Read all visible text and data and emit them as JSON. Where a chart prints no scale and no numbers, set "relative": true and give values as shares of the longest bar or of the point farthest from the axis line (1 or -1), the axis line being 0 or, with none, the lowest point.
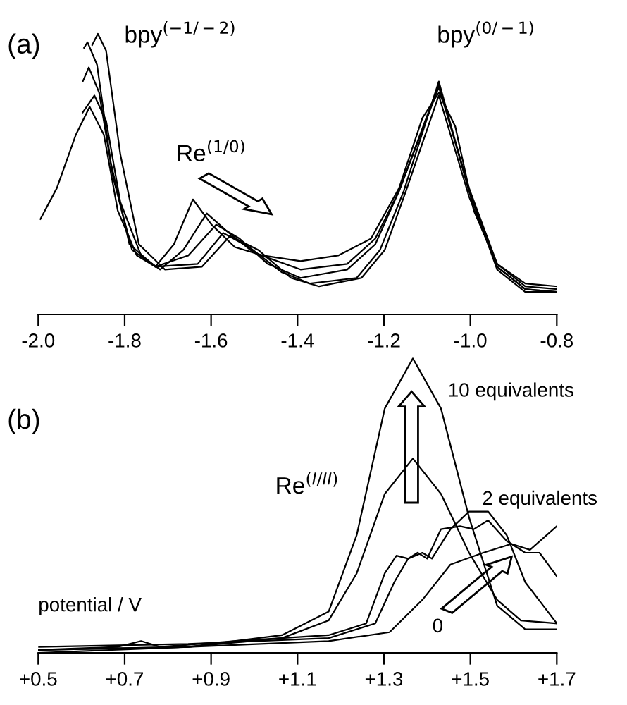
{
  "chart_data": [
    {
      "type": "line",
      "relative": true,
      "tick_labels": "x",
      "grid": false,
      "legend": false,
      "line_style": "solid",
      "marker": "none",
      "xlim": [
        -2.0,
        -0.8
      ],
      "xticks": [
        {
          "value": -2.0,
          "label": "-2.0"
        },
        {
          "value": -1.8,
          "label": "-1.8"
        },
        {
          "value": -1.6,
          "label": "-1.6"
        },
        {
          "value": -1.4,
          "label": "-1.4"
        },
        {
          "value": -1.2,
          "label": "-1.2"
        },
        {
          "value": -1.0,
          "label": "-1.0"
        },
        {
          "value": -0.8,
          "label": "-0.8"
        }
      ],
      "annotations": [
        "(a)",
        "bpy$^{(−1/−2)}$",
        "bpy$^{(0/−1)}$",
        "Re$^{(1/0)}$"
      ],
      "series": [
        {
          "color": "#000000",
          "x": [
            -1.995,
            -1.957,
            -1.913,
            -1.881,
            -1.848,
            -1.816,
            -1.772,
            -1.729,
            -1.686,
            -1.642,
            -1.599,
            -1.545,
            -1.48,
            -1.393,
            -1.306,
            -1.23,
            -1.165,
            -1.111,
            -1.073,
            -1.035,
            -0.992,
            -0.938,
            -0.873,
            -0.8
          ],
          "values": [
            0.34,
            0.45,
            0.64,
            0.74,
            0.64,
            0.37,
            0.21,
            0.17,
            0.25,
            0.41,
            0.32,
            0.24,
            0.21,
            0.19,
            0.21,
            0.27,
            0.45,
            0.7,
            0.79,
            0.67,
            0.37,
            0.18,
            0.11,
            0.1
          ]
        },
        {
          "color": "#000000",
          "x": [
            -1.897,
            -1.87,
            -1.843,
            -1.81,
            -1.762,
            -1.718,
            -1.664,
            -1.61,
            -1.566,
            -1.501,
            -1.393,
            -1.285,
            -1.22,
            -1.165,
            -1.073,
            -1.003,
            -0.938,
            -0.873,
            -0.8
          ],
          "values": [
            0.72,
            0.78,
            0.69,
            0.4,
            0.21,
            0.16,
            0.23,
            0.36,
            0.3,
            0.22,
            0.16,
            0.18,
            0.27,
            0.44,
            0.81,
            0.45,
            0.18,
            0.1,
            0.09
          ]
        },
        {
          "color": "#000000",
          "x": [
            -1.897,
            -1.883,
            -1.859,
            -1.827,
            -1.783,
            -1.729,
            -1.653,
            -1.588,
            -1.534,
            -1.469,
            -1.393,
            -1.285,
            -1.22,
            -1.165,
            -1.073,
            -1.003,
            -0.938,
            -0.873,
            -0.8
          ],
          "values": [
            0.83,
            0.88,
            0.79,
            0.49,
            0.23,
            0.17,
            0.21,
            0.32,
            0.27,
            0.18,
            0.13,
            0.16,
            0.25,
            0.44,
            0.82,
            0.44,
            0.17,
            0.09,
            0.08
          ]
        },
        {
          "color": "#000000",
          "x": [
            -1.894,
            -1.886,
            -1.864,
            -1.832,
            -1.789,
            -1.729,
            -1.631,
            -1.572,
            -1.512,
            -1.436,
            -1.371,
            -1.263,
            -1.209,
            -1.154,
            -1.073,
            -1.003,
            -0.938,
            -0.873,
            -0.8
          ],
          "values": [
            0.95,
            0.97,
            0.89,
            0.54,
            0.25,
            0.17,
            0.18,
            0.29,
            0.24,
            0.15,
            0.11,
            0.13,
            0.23,
            0.44,
            0.83,
            0.44,
            0.16,
            0.08,
            0.08
          ]
        },
        {
          "color": "#000000",
          "x": [
            -1.875,
            -1.862,
            -1.843,
            -1.81,
            -1.767,
            -1.707,
            -1.621,
            -1.556,
            -1.491,
            -1.415,
            -1.35,
            -1.252,
            -1.198,
            -1.149,
            -1.073,
            -1.003,
            -0.938,
            -0.873,
            -0.8
          ],
          "values": [
            0.96,
            1.0,
            0.94,
            0.57,
            0.25,
            0.16,
            0.17,
            0.28,
            0.23,
            0.13,
            0.1,
            0.13,
            0.23,
            0.44,
            0.78,
            0.42,
            0.17,
            0.09,
            0.08
          ]
        }
      ]
    },
    {
      "type": "line",
      "relative": true,
      "tick_labels": "x",
      "grid": false,
      "legend": false,
      "line_style": "solid",
      "marker": "none",
      "xlabel": "potential / V",
      "xlim": [
        0.5,
        1.7
      ],
      "xticks": [
        {
          "value": 0.5,
          "label": "+0.5"
        },
        {
          "value": 0.7,
          "label": "+0.7"
        },
        {
          "value": 0.9,
          "label": "+0.9"
        },
        {
          "value": 1.1,
          "label": "+1.1"
        },
        {
          "value": 1.3,
          "label": "+1.3"
        },
        {
          "value": 1.5,
          "label": "+1.5"
        },
        {
          "value": 1.7,
          "label": "+1.7"
        }
      ],
      "annotations": [
        "(b)",
        "10 equivalents",
        "Re$^{(I/II)}$",
        "2 equivalents",
        "0"
      ],
      "series": [
        {
          "color": "#000000",
          "x": [
            0.5,
            0.847,
            1.172,
            1.313,
            1.389,
            1.454,
            1.53,
            1.595,
            1.638,
            1.7
          ],
          "values": [
            0.01,
            0.02,
            0.04,
            0.07,
            0.18,
            0.3,
            0.34,
            0.37,
            0.35,
            0.43
          ]
        },
        {
          "color": "#000000",
          "x": [
            0.5,
            0.847,
            1.172,
            1.28,
            1.324,
            1.356,
            1.378,
            1.4,
            1.432,
            1.476,
            1.508,
            1.541,
            1.584,
            1.627,
            1.66,
            1.7
          ],
          "values": [
            0.02,
            0.03,
            0.05,
            0.1,
            0.24,
            0.32,
            0.34,
            0.32,
            0.42,
            0.43,
            0.42,
            0.45,
            0.38,
            0.34,
            0.34,
            0.26
          ]
        },
        {
          "color": "#000000",
          "x": [
            0.5,
            0.684,
            0.738,
            0.782,
            0.955,
            1.172,
            1.259,
            1.302,
            1.329,
            1.356,
            1.389,
            1.411,
            1.454,
            1.497,
            1.541,
            1.584,
            1.627,
            1.7
          ],
          "values": [
            0.01,
            0.02,
            0.04,
            0.02,
            0.04,
            0.06,
            0.1,
            0.27,
            0.33,
            0.32,
            0.34,
            0.32,
            0.42,
            0.48,
            0.48,
            0.4,
            0.24,
            0.1
          ]
        },
        {
          "color": "#000000",
          "x": [
            0.5,
            0.847,
            1.064,
            1.172,
            1.237,
            1.302,
            1.367,
            1.432,
            1.497,
            1.562,
            1.617,
            1.7
          ],
          "values": [
            0.0,
            0.02,
            0.05,
            0.11,
            0.27,
            0.54,
            0.66,
            0.54,
            0.34,
            0.18,
            0.11,
            0.1
          ]
        },
        {
          "color": "#000000",
          "x": [
            0.5,
            0.847,
            1.064,
            1.172,
            1.237,
            1.302,
            1.367,
            1.432,
            1.497,
            1.562,
            1.627,
            1.7
          ],
          "values": [
            0.01,
            0.02,
            0.06,
            0.14,
            0.4,
            0.83,
            1.0,
            0.83,
            0.46,
            0.16,
            0.08,
            0.08
          ]
        }
      ]
    }
  ]
}
